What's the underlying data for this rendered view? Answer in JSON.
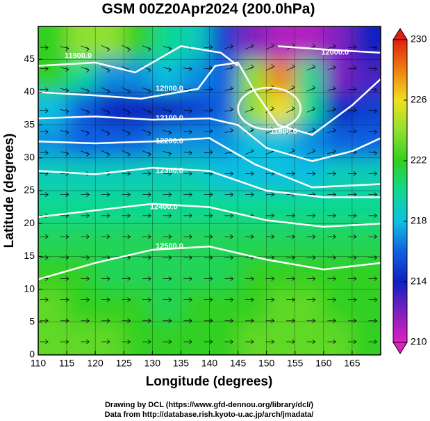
{
  "chart_data": {
    "type": "heatmap",
    "title": "GSM 00Z20Apr2024 (200.0hPa)",
    "x_label": "Longitude (degrees)",
    "y_label": "Latitude  (degrees)",
    "credits": [
      "Drawing by DCL (https://www.gfd-dennou.org/library/dcl/)",
      "Data from http://database.rish.kyoto-u.ac.jp/arch/jmadata/"
    ],
    "xlim": [
      110,
      170
    ],
    "xticks": [
      110,
      115,
      120,
      125,
      130,
      135,
      140,
      145,
      150,
      155,
      160,
      165
    ],
    "ylim": [
      0,
      50
    ],
    "yticks": [
      0,
      5,
      10,
      15,
      20,
      25,
      30,
      35,
      40,
      45
    ],
    "grid": true,
    "clim": [
      210,
      230
    ],
    "cticks": [
      210,
      214,
      218,
      222,
      226,
      230
    ],
    "colors": [
      "#e020c0",
      "#8020c0",
      "#1020c0",
      "#1060e0",
      "#10c0e0",
      "#10d890",
      "#30d020",
      "#90e030",
      "#f0e020",
      "#f08010",
      "#e02010"
    ],
    "contour_labels": [
      "11900.0",
      "12000.0",
      "12100.0",
      "12200.0",
      "12300.0",
      "12400.0",
      "12500.0",
      "12000.0",
      "11800.0"
    ],
    "grid_values": [
      [
        222,
        224,
        224,
        222,
        220,
        219,
        215,
        212,
        211,
        211,
        212,
        214
      ],
      [
        222,
        220,
        217,
        217,
        218,
        217,
        216,
        224,
        228,
        220,
        212,
        213
      ],
      [
        218,
        216,
        214,
        214,
        214,
        215,
        216,
        224,
        226,
        220,
        214,
        215
      ],
      [
        217,
        216,
        216,
        216,
        217,
        217,
        217,
        218,
        218,
        217,
        216,
        216
      ],
      [
        219,
        219,
        219,
        219,
        219,
        219,
        218,
        218,
        218,
        218,
        219,
        219
      ],
      [
        220,
        220,
        220,
        220,
        220,
        220,
        220,
        220,
        220,
        220,
        220,
        220
      ],
      [
        221,
        221,
        221,
        221,
        221,
        221,
        221,
        221,
        221,
        221,
        221,
        221
      ],
      [
        222,
        222,
        221,
        221,
        221,
        221,
        221,
        222,
        222,
        222,
        222,
        222
      ],
      [
        223,
        222,
        222,
        222,
        221,
        222,
        222,
        222,
        223,
        223,
        222,
        222
      ],
      [
        223,
        223,
        223,
        222,
        222,
        222,
        222,
        223,
        223,
        223,
        223,
        222
      ]
    ]
  }
}
